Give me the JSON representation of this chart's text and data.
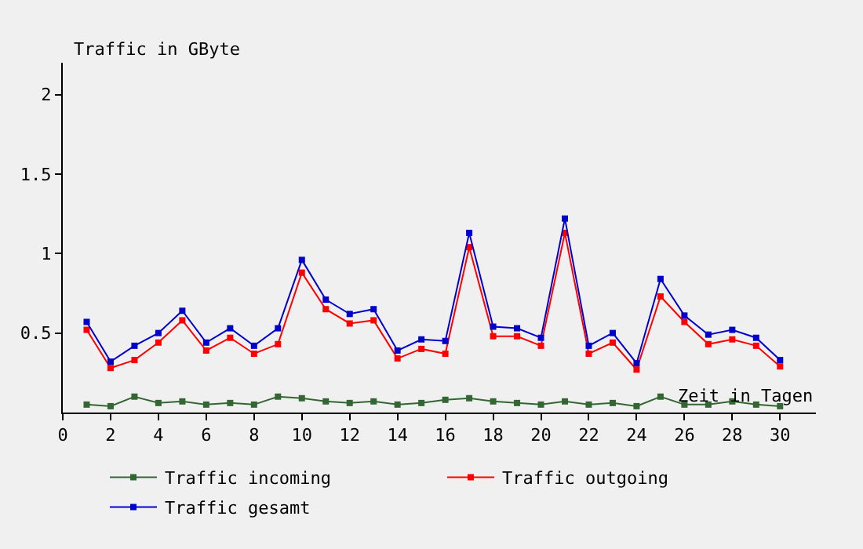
{
  "chart_data": {
    "type": "line",
    "xlabel": "Zeit in Tagen",
    "ylabel": "Traffic in GByte",
    "x": [
      1,
      2,
      3,
      4,
      5,
      6,
      7,
      8,
      9,
      10,
      11,
      12,
      13,
      14,
      15,
      16,
      17,
      18,
      19,
      20,
      21,
      22,
      23,
      24,
      25,
      26,
      27,
      28,
      29,
      30
    ],
    "series": [
      {
        "name": "Traffic incoming",
        "color": "#336633",
        "values": [
          0.05,
          0.04,
          0.1,
          0.06,
          0.07,
          0.05,
          0.06,
          0.05,
          0.1,
          0.09,
          0.07,
          0.06,
          0.07,
          0.05,
          0.06,
          0.08,
          0.09,
          0.07,
          0.06,
          0.05,
          0.07,
          0.05,
          0.06,
          0.04,
          0.1,
          0.05,
          0.05,
          0.07,
          0.05,
          0.04
        ]
      },
      {
        "name": "Traffic outgoing",
        "color": "#ff0000",
        "values": [
          0.52,
          0.28,
          0.33,
          0.44,
          0.58,
          0.39,
          0.47,
          0.37,
          0.43,
          0.88,
          0.65,
          0.56,
          0.58,
          0.34,
          0.4,
          0.37,
          1.04,
          0.48,
          0.48,
          0.42,
          1.13,
          0.37,
          0.44,
          0.27,
          0.73,
          0.57,
          0.43,
          0.46,
          0.42,
          0.29
        ]
      },
      {
        "name": "Traffic gesamt",
        "color": "#0000cc",
        "values": [
          0.57,
          0.32,
          0.42,
          0.5,
          0.64,
          0.44,
          0.53,
          0.42,
          0.53,
          0.96,
          0.71,
          0.62,
          0.65,
          0.39,
          0.46,
          0.45,
          1.13,
          0.54,
          0.53,
          0.47,
          1.22,
          0.42,
          0.5,
          0.31,
          0.84,
          0.61,
          0.49,
          0.52,
          0.47,
          0.33
        ]
      }
    ],
    "xlim": [
      0,
      31.5
    ],
    "xticks": [
      0,
      2,
      4,
      6,
      8,
      10,
      12,
      14,
      16,
      18,
      20,
      22,
      24,
      26,
      28,
      30
    ],
    "ylim": [
      0,
      2.2
    ],
    "yticks": [
      0.5,
      1,
      1.5,
      2
    ],
    "grid": false,
    "legend": "bottom",
    "marker": "square",
    "line_style": "solid"
  }
}
